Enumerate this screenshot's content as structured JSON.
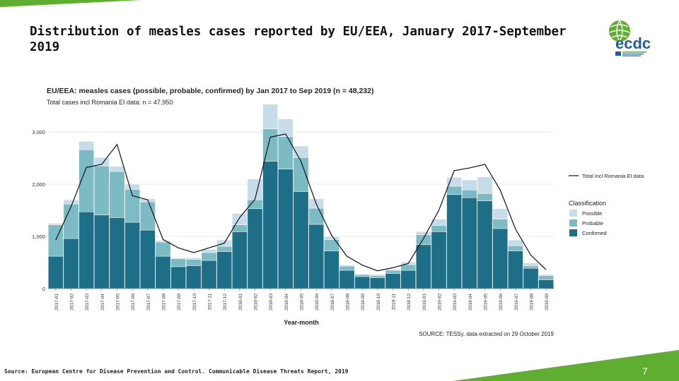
{
  "slide": {
    "title": "Distribution of measles cases reported by EU/EEA, January 2017-September 2019",
    "source": "Source: European Centre for Disease Prevention and Control. Communicable Disease Threats Report, 2019",
    "page_number": "7",
    "logo_text": "ecdc",
    "colors": {
      "accent_green": "#5fae32",
      "possible": "#c6dce9",
      "probable": "#7cbac4",
      "confirmed": "#1f6e88",
      "line": "#111111"
    }
  },
  "chart_data": {
    "type": "bar",
    "stacked": true,
    "title": "EU/EEA: measles cases (possible, probable, confirmed) by Jan 2017 to Sep 2019 (n = 48,232)",
    "subtitle": "Total cases incl Romania EI data: n = 47,950",
    "xlabel": "Year-month",
    "ylabel": "",
    "ylim": [
      0,
      3500
    ],
    "yticks": [
      0,
      1000,
      2000,
      3000
    ],
    "ytick_labels": [
      "0",
      "1,000",
      "2,000",
      "3,000"
    ],
    "source_note": "SOURCE: TESSy, data extracted on 29 October 2019",
    "categories": [
      "2017-01",
      "2017-02",
      "2017-03",
      "2017-04",
      "2017-05",
      "2017-06",
      "2017-07",
      "2017-08",
      "2017-09",
      "2017-10",
      "2017-11",
      "2017-12",
      "2018-01",
      "2018-02",
      "2018-03",
      "2018-04",
      "2018-05",
      "2018-06",
      "2018-07",
      "2018-08",
      "2018-09",
      "2018-10",
      "2018-11",
      "2018-12",
      "2019-01",
      "2019-02",
      "2019-03",
      "2019-04",
      "2019-05",
      "2019-06",
      "2019-07",
      "2019-08",
      "2019-09"
    ],
    "legend": {
      "line_label": "Total incl Romania EI data",
      "title": "Classification",
      "placement": "right"
    },
    "series": [
      {
        "name": "Confirmed",
        "color": "#1f6e88",
        "values": [
          620,
          960,
          1470,
          1410,
          1360,
          1270,
          1120,
          620,
          420,
          440,
          540,
          710,
          1090,
          1530,
          2440,
          2290,
          1860,
          1230,
          720,
          350,
          230,
          210,
          290,
          350,
          840,
          1090,
          1800,
          1740,
          1680,
          1150,
          720,
          390,
          170
        ]
      },
      {
        "name": "Probable",
        "color": "#7cbac4",
        "values": [
          600,
          660,
          1190,
          940,
          880,
          630,
          540,
          270,
          150,
          120,
          150,
          100,
          130,
          170,
          620,
          620,
          650,
          310,
          220,
          80,
          40,
          40,
          60,
          110,
          190,
          120,
          160,
          150,
          140,
          180,
          100,
          50,
          80
        ]
      },
      {
        "name": "Possible",
        "color": "#c6dce9",
        "values": [
          30,
          80,
          160,
          160,
          100,
          100,
          60,
          30,
          20,
          30,
          60,
          120,
          220,
          400,
          470,
          340,
          220,
          180,
          60,
          20,
          10,
          20,
          20,
          50,
          60,
          120,
          170,
          190,
          320,
          200,
          110,
          50,
          20
        ]
      }
    ],
    "line": {
      "name": "Total incl Romania EI data",
      "color": "#111111",
      "values": [
        930,
        1570,
        2320,
        2380,
        2760,
        1780,
        1700,
        940,
        780,
        690,
        780,
        870,
        1360,
        1710,
        2900,
        2960,
        2440,
        1620,
        1020,
        620,
        450,
        340,
        400,
        480,
        960,
        1500,
        2260,
        2310,
        2380,
        1890,
        1140,
        640,
        360
      ]
    }
  }
}
